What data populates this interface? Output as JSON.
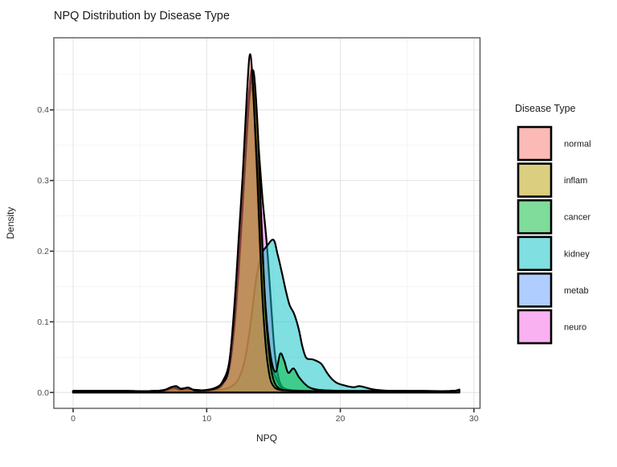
{
  "title": "NPQ Distribution by Disease Type",
  "axes": {
    "x": {
      "title": "NPQ",
      "ticks": [
        {
          "value": 0,
          "label": "0"
        },
        {
          "value": 10,
          "label": "10"
        },
        {
          "value": 20,
          "label": "20"
        },
        {
          "value": 30,
          "label": "30"
        }
      ]
    },
    "y": {
      "title": "Density",
      "ticks": [
        {
          "value": 0.0,
          "label": "0.0"
        },
        {
          "value": 0.1,
          "label": "0.1"
        },
        {
          "value": 0.2,
          "label": "0.2"
        },
        {
          "value": 0.3,
          "label": "0.3"
        },
        {
          "value": 0.4,
          "label": "0.4"
        }
      ]
    }
  },
  "legend": {
    "title": "Disease Type",
    "items": [
      {
        "label": "normal",
        "swatch_fill": "rgba(248,118,109,0.5)"
      },
      {
        "label": "inflam",
        "swatch_fill": "rgba(183,159,0,0.5)"
      },
      {
        "label": "cancer",
        "swatch_fill": "rgba(0,186,56,0.5)"
      },
      {
        "label": "kidney",
        "swatch_fill": "rgba(0,191,196,0.5)"
      },
      {
        "label": "metab",
        "swatch_fill": "rgba(97,156,255,0.5)"
      },
      {
        "label": "neuro",
        "swatch_fill": "rgba(245,100,227,0.5)"
      }
    ]
  },
  "chart_data": {
    "type": "area",
    "subtype": "overlaid-density-curves",
    "title": "NPQ Distribution by Disease Type",
    "xlabel": "NPQ",
    "ylabel": "Density",
    "xlim": [
      -1.5,
      30.7
    ],
    "ylim": [
      -0.022,
      0.502
    ],
    "x_major_gridlines": [
      0,
      10,
      20,
      30
    ],
    "x_minor_gridlines": [
      5,
      15,
      25
    ],
    "y_major_gridlines": [
      0.0,
      0.1,
      0.2,
      0.3,
      0.4
    ],
    "y_minor_gridlines": [
      0.05,
      0.15,
      0.25,
      0.35,
      0.45
    ],
    "grid": "on",
    "legend_position": "right",
    "outline_color": "#000000",
    "fill_alpha": 0.5,
    "series": [
      {
        "name": "neuro",
        "color": "#F564E3",
        "points": [
          [
            0,
            0.002
          ],
          [
            2,
            0.002
          ],
          [
            4,
            0.002
          ],
          [
            6,
            0.002
          ],
          [
            6.8,
            0.003
          ],
          [
            7.4,
            0.006
          ],
          [
            8,
            0.004
          ],
          [
            8.6,
            0.005
          ],
          [
            9.4,
            0.003
          ],
          [
            10.1,
            0.004
          ],
          [
            10.7,
            0.007
          ],
          [
            11.2,
            0.016
          ],
          [
            11.7,
            0.045
          ],
          [
            12.1,
            0.13
          ],
          [
            12.5,
            0.24
          ],
          [
            12.9,
            0.34
          ],
          [
            13.2,
            0.42
          ],
          [
            13.45,
            0.44
          ],
          [
            13.7,
            0.4
          ],
          [
            13.95,
            0.33
          ],
          [
            14.2,
            0.27
          ],
          [
            14.5,
            0.21
          ],
          [
            14.8,
            0.13
          ],
          [
            15.05,
            0.065
          ],
          [
            15.3,
            0.028
          ],
          [
            15.55,
            0.011
          ],
          [
            15.9,
            0.005
          ],
          [
            16.5,
            0.003
          ],
          [
            18,
            0.002
          ],
          [
            20,
            0.002
          ],
          [
            22,
            0.002
          ],
          [
            24,
            0.002
          ],
          [
            26,
            0.002
          ],
          [
            28.4,
            0.002
          ],
          [
            28.9,
            0.004
          ]
        ]
      },
      {
        "name": "metab",
        "color": "#619CFF",
        "points": [
          [
            0,
            0.002
          ],
          [
            2,
            0.002
          ],
          [
            4,
            0.002
          ],
          [
            6,
            0.002
          ],
          [
            6.9,
            0.004
          ],
          [
            7.4,
            0.008
          ],
          [
            7.9,
            0.005
          ],
          [
            8.4,
            0.006
          ],
          [
            9.1,
            0.003
          ],
          [
            9.9,
            0.003
          ],
          [
            10.6,
            0.005
          ],
          [
            11.1,
            0.012
          ],
          [
            11.6,
            0.032
          ],
          [
            12,
            0.09
          ],
          [
            12.4,
            0.19
          ],
          [
            12.8,
            0.32
          ],
          [
            13.15,
            0.42
          ],
          [
            13.45,
            0.45
          ],
          [
            13.75,
            0.3
          ],
          [
            13.95,
            0.21
          ],
          [
            14.1,
            0.17
          ],
          [
            14.4,
            0.11
          ],
          [
            14.7,
            0.055
          ],
          [
            14.95,
            0.032
          ],
          [
            15.2,
            0.02
          ],
          [
            15.5,
            0.009
          ],
          [
            15.9,
            0.004
          ],
          [
            16.5,
            0.003
          ],
          [
            18,
            0.002
          ],
          [
            20,
            0.002
          ],
          [
            22,
            0.002
          ],
          [
            24,
            0.002
          ],
          [
            26,
            0.002
          ],
          [
            28.4,
            0.002
          ],
          [
            28.9,
            0.004
          ]
        ]
      },
      {
        "name": "kidney",
        "color": "#00BFC4",
        "points": [
          [
            0,
            0.002
          ],
          [
            2,
            0.002
          ],
          [
            4,
            0.002
          ],
          [
            6,
            0.002
          ],
          [
            7.5,
            0.004
          ],
          [
            8.5,
            0.003
          ],
          [
            10,
            0.003
          ],
          [
            11,
            0.004
          ],
          [
            11.8,
            0.008
          ],
          [
            12.4,
            0.02
          ],
          [
            12.9,
            0.05
          ],
          [
            13.3,
            0.1
          ],
          [
            13.7,
            0.16
          ],
          [
            14.1,
            0.195
          ],
          [
            14.5,
            0.207
          ],
          [
            15,
            0.216
          ],
          [
            15.3,
            0.196
          ],
          [
            15.6,
            0.172
          ],
          [
            15.9,
            0.146
          ],
          [
            16.2,
            0.124
          ],
          [
            16.55,
            0.111
          ],
          [
            16.9,
            0.089
          ],
          [
            17.15,
            0.066
          ],
          [
            17.45,
            0.049
          ],
          [
            17.9,
            0.047
          ],
          [
            18.3,
            0.044
          ],
          [
            18.6,
            0.04
          ],
          [
            19,
            0.028
          ],
          [
            19.4,
            0.0185
          ],
          [
            19.8,
            0.013
          ],
          [
            20.4,
            0.0095
          ],
          [
            21,
            0.0075
          ],
          [
            21.4,
            0.009
          ],
          [
            21.8,
            0.0075
          ],
          [
            22.3,
            0.005
          ],
          [
            22.8,
            0.0035
          ],
          [
            23.5,
            0.0025
          ],
          [
            25,
            0.002
          ],
          [
            26.5,
            0.002
          ],
          [
            28,
            0.002
          ],
          [
            28.9,
            0.003
          ]
        ]
      },
      {
        "name": "cancer",
        "color": "#00BA38",
        "points": [
          [
            0,
            0.002
          ],
          [
            2,
            0.002
          ],
          [
            4,
            0.002
          ],
          [
            6,
            0.002
          ],
          [
            7,
            0.003
          ],
          [
            7.6,
            0.006
          ],
          [
            8.2,
            0.004
          ],
          [
            9,
            0.004
          ],
          [
            9.8,
            0.003
          ],
          [
            10.5,
            0.004
          ],
          [
            11,
            0.008
          ],
          [
            11.5,
            0.025
          ],
          [
            12,
            0.08
          ],
          [
            12.4,
            0.17
          ],
          [
            12.8,
            0.3
          ],
          [
            13.1,
            0.4
          ],
          [
            13.4,
            0.43
          ],
          [
            13.7,
            0.36
          ],
          [
            14,
            0.25
          ],
          [
            14.3,
            0.15
          ],
          [
            14.6,
            0.08
          ],
          [
            14.9,
            0.04
          ],
          [
            15.2,
            0.03
          ],
          [
            15.5,
            0.055
          ],
          [
            15.8,
            0.045
          ],
          [
            16.1,
            0.028
          ],
          [
            16.5,
            0.034
          ],
          [
            16.9,
            0.022
          ],
          [
            17.3,
            0.013
          ],
          [
            17.7,
            0.007
          ],
          [
            18.3,
            0.004
          ],
          [
            19,
            0.003
          ],
          [
            20.5,
            0.002
          ],
          [
            23,
            0.002
          ],
          [
            26,
            0.002
          ],
          [
            28.4,
            0.002
          ],
          [
            28.9,
            0.004
          ]
        ]
      },
      {
        "name": "inflam",
        "color": "#B79F00",
        "points": [
          [
            0,
            0.002
          ],
          [
            2,
            0.002
          ],
          [
            4,
            0.002
          ],
          [
            6,
            0.002
          ],
          [
            7,
            0.004
          ],
          [
            7.5,
            0.007
          ],
          [
            8,
            0.004
          ],
          [
            8.5,
            0.006
          ],
          [
            9.2,
            0.003
          ],
          [
            10,
            0.003
          ],
          [
            10.7,
            0.005
          ],
          [
            11.2,
            0.012
          ],
          [
            11.7,
            0.035
          ],
          [
            12.1,
            0.1
          ],
          [
            12.5,
            0.21
          ],
          [
            12.9,
            0.33
          ],
          [
            13.2,
            0.42
          ],
          [
            13.5,
            0.455
          ],
          [
            13.8,
            0.38
          ],
          [
            14.1,
            0.24
          ],
          [
            14.4,
            0.12
          ],
          [
            14.7,
            0.05
          ],
          [
            15,
            0.018
          ],
          [
            15.4,
            0.006
          ],
          [
            16,
            0.003
          ],
          [
            17.5,
            0.002
          ],
          [
            20,
            0.002
          ],
          [
            23,
            0.002
          ],
          [
            26,
            0.002
          ],
          [
            28.4,
            0.002
          ],
          [
            28.9,
            0.004
          ]
        ]
      },
      {
        "name": "normal",
        "color": "#F8766D",
        "points": [
          [
            0,
            0.002
          ],
          [
            1.5,
            0.002
          ],
          [
            3,
            0.002
          ],
          [
            4.5,
            0.002
          ],
          [
            6,
            0.002
          ],
          [
            6.8,
            0.003
          ],
          [
            7.3,
            0.007
          ],
          [
            7.7,
            0.009
          ],
          [
            8.1,
            0.005
          ],
          [
            8.6,
            0.007
          ],
          [
            9.1,
            0.003
          ],
          [
            9.7,
            0.003
          ],
          [
            10.3,
            0.004
          ],
          [
            10.8,
            0.007
          ],
          [
            11.2,
            0.014
          ],
          [
            11.6,
            0.03
          ],
          [
            12,
            0.1
          ],
          [
            12.4,
            0.22
          ],
          [
            12.7,
            0.31
          ],
          [
            13,
            0.42
          ],
          [
            13.25,
            0.479
          ],
          [
            13.5,
            0.42
          ],
          [
            13.8,
            0.3
          ],
          [
            14.1,
            0.16
          ],
          [
            14.4,
            0.07
          ],
          [
            14.7,
            0.024
          ],
          [
            15,
            0.009
          ],
          [
            15.4,
            0.004
          ],
          [
            16,
            0.003
          ],
          [
            17,
            0.002
          ],
          [
            19,
            0.002
          ],
          [
            21,
            0.002
          ],
          [
            23,
            0.002
          ],
          [
            25,
            0.002
          ],
          [
            27,
            0.002
          ],
          [
            28.4,
            0.002
          ],
          [
            28.9,
            0.004
          ]
        ]
      }
    ]
  }
}
